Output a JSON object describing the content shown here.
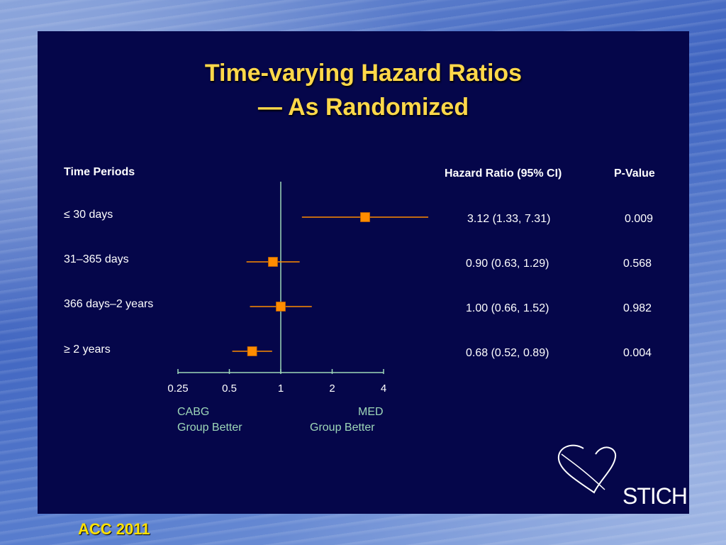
{
  "title_line1": "Time-varying Hazard Ratios",
  "title_line2": "— As Randomized",
  "headers": {
    "time_periods": "Time Periods",
    "hazard_ratio": "Hazard Ratio (95% CI)",
    "p_value": "P-Value"
  },
  "rows": [
    {
      "period": "≤ 30 days",
      "hr_ci": "3.12 (1.33, 7.31)",
      "p": "0.009"
    },
    {
      "period": "31–365 days",
      "hr_ci": "0.90 (0.63, 1.29)",
      "p": "0.568"
    },
    {
      "period": "366 days–2 years",
      "hr_ci": "1.00 (0.66, 1.52)",
      "p": "0.982"
    },
    {
      "period": "≥ 2 years",
      "hr_ci": "0.68 (0.52, 0.89)",
      "p": "0.004"
    }
  ],
  "labels": {
    "left_line1": "CABG",
    "left_line2": "Group Better",
    "right_line1": "MED",
    "right_line2": "Group Better"
  },
  "footer": "ACC 2011",
  "logo_text": "STICH",
  "colors": {
    "marker": "#ff8c00",
    "line": "#ff8c00",
    "axis": "#9ed7b8",
    "title": "#ffd84a"
  },
  "chart_data": {
    "type": "scatter",
    "scale": "log",
    "xlim": [
      0.25,
      4
    ],
    "ticks": [
      0.25,
      0.5,
      1,
      2,
      4
    ],
    "tick_labels": [
      "0.25",
      "0.5",
      "1",
      "2",
      "4"
    ],
    "reference_line": 1,
    "points": [
      {
        "category": "≤ 30 days",
        "hr": 3.12,
        "lo": 1.33,
        "hi": 7.31
      },
      {
        "category": "31–365 days",
        "hr": 0.9,
        "lo": 0.63,
        "hi": 1.29
      },
      {
        "category": "366 days–2 years",
        "hr": 1.0,
        "lo": 0.66,
        "hi": 1.52
      },
      {
        "category": "≥ 2 years",
        "hr": 0.68,
        "lo": 0.52,
        "hi": 0.89
      }
    ]
  }
}
